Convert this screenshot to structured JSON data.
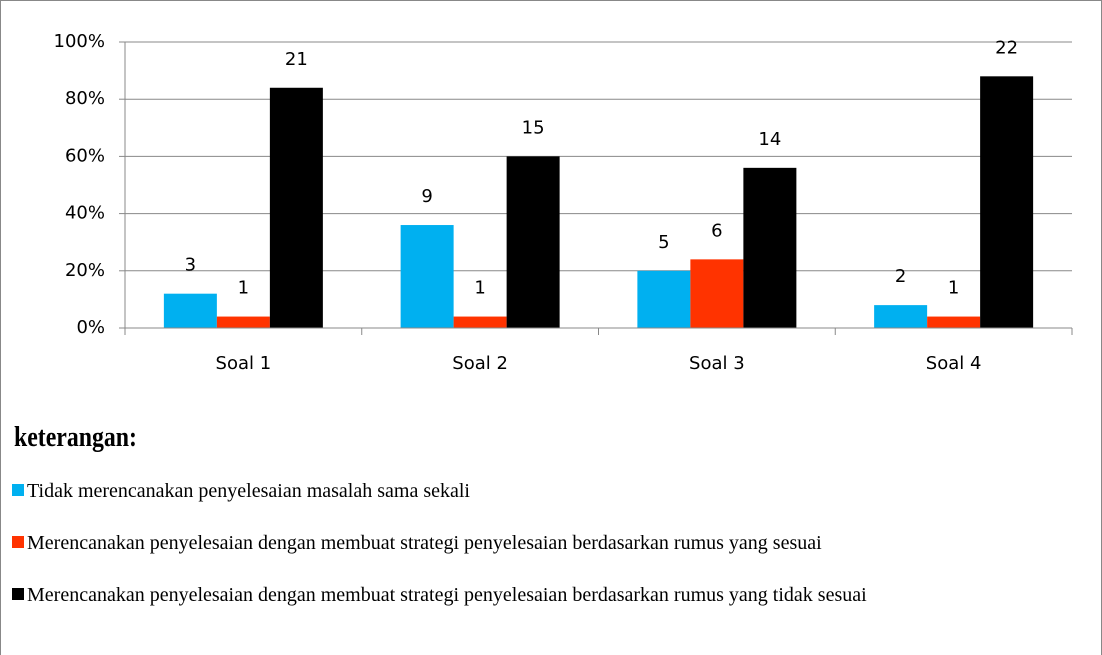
{
  "chart_data": {
    "type": "bar",
    "categories": [
      "Soal 1",
      "Soal 2",
      "Soal 3",
      "Soal 4"
    ],
    "series": [
      {
        "name": "Tidak merencanakan penyelesaian masalah sama sekali",
        "color": "#00b0f0",
        "values": [
          12,
          36,
          20,
          8
        ],
        "counts": [
          3,
          9,
          5,
          2
        ]
      },
      {
        "name": "Merencanakan penyelesaian dengan membuat strategi penyelesaian berdasarkan rumus yang sesuai",
        "color": "#ff3300",
        "values": [
          4,
          4,
          24,
          4
        ],
        "counts": [
          1,
          1,
          6,
          1
        ]
      },
      {
        "name": "Merencanakan penyelesaian dengan membuat strategi penyelesaian berdasarkan rumus yang tidak sesuai",
        "color": "#000000",
        "values": [
          84,
          60,
          56,
          88
        ],
        "counts": [
          21,
          15,
          14,
          22
        ]
      }
    ],
    "ylim": [
      0,
      100
    ],
    "yticks": [
      {
        "value": 0,
        "label": "0%"
      },
      {
        "value": 20,
        "label": "20%"
      },
      {
        "value": 40,
        "label": "40%"
      },
      {
        "value": 60,
        "label": "60%"
      },
      {
        "value": 80,
        "label": "80%"
      },
      {
        "value": 100,
        "label": "100%"
      }
    ],
    "grid": true,
    "legend_title": "keterangan:"
  }
}
